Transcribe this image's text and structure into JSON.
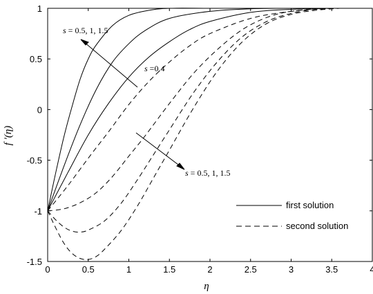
{
  "chart_data": {
    "type": "line",
    "xlabel": "η",
    "ylabel": "f '(η)",
    "xlim": [
      0,
      4
    ],
    "ylim": [
      -1.5,
      1
    ],
    "xticks": [
      "0",
      "0.5",
      "1",
      "1.5",
      "2",
      "2.5",
      "3",
      "3.5",
      "4"
    ],
    "yticks": [
      "1",
      "0.5",
      "0",
      "-0.5",
      "-1",
      "-1.5"
    ],
    "grid": false,
    "legend_position": "bottom-right",
    "legend": [
      {
        "label": "first solution",
        "style": "solid"
      },
      {
        "label": "second solution",
        "style": "dashed"
      }
    ],
    "annotations": {
      "first_arrow_label": "s = 0.5, 1, 1.5",
      "middle_label": "s =0.4",
      "second_arrow_label": "s = 0.5, 1, 1.5"
    },
    "series": [
      {
        "style": "solid",
        "x": [
          0,
          0.1,
          0.2,
          0.3,
          0.4,
          0.5,
          0.6,
          0.8,
          1.0,
          1.25,
          1.5,
          2.0,
          2.5
        ],
        "y": [
          -1,
          -0.62,
          -0.27,
          0.03,
          0.3,
          0.5,
          0.64,
          0.83,
          0.93,
          0.98,
          1.0,
          1.0,
          1.0
        ]
      },
      {
        "style": "solid",
        "x": [
          0,
          0.2,
          0.4,
          0.6,
          0.8,
          1.0,
          1.2,
          1.5,
          2.0,
          2.5,
          3.0
        ],
        "y": [
          -1,
          -0.56,
          -0.15,
          0.2,
          0.47,
          0.65,
          0.78,
          0.9,
          0.97,
          0.995,
          1.0
        ]
      },
      {
        "style": "solid",
        "x": [
          0,
          0.25,
          0.5,
          0.75,
          1.0,
          1.25,
          1.5,
          1.75,
          2.0,
          2.5,
          3.0,
          3.5
        ],
        "y": [
          -1,
          -0.62,
          -0.25,
          0.06,
          0.32,
          0.52,
          0.67,
          0.79,
          0.87,
          0.96,
          0.99,
          1.0
        ]
      },
      {
        "style": "dashed",
        "x": [
          0,
          0.25,
          0.5,
          0.75,
          1.0,
          1.25,
          1.5,
          1.75,
          2.0,
          2.5,
          3.0,
          3.5
        ],
        "y": [
          -1,
          -0.75,
          -0.48,
          -0.22,
          0.05,
          0.28,
          0.47,
          0.63,
          0.75,
          0.9,
          0.97,
          1.0
        ]
      },
      {
        "style": "dashed",
        "x": [
          0,
          0.2,
          0.4,
          0.6,
          0.8,
          1.0,
          1.2,
          1.5,
          1.8,
          2.1,
          2.4,
          2.7,
          3.0,
          3.4
        ],
        "y": [
          -1,
          -0.98,
          -0.92,
          -0.82,
          -0.66,
          -0.46,
          -0.26,
          0.06,
          0.36,
          0.6,
          0.79,
          0.91,
          0.97,
          1.0
        ]
      },
      {
        "style": "dashed",
        "x": [
          0,
          0.1,
          0.2,
          0.3,
          0.4,
          0.5,
          0.7,
          0.9,
          1.1,
          1.3,
          1.5,
          1.8,
          2.1,
          2.4,
          2.7,
          3.0,
          3.3,
          3.6
        ],
        "y": [
          -1,
          -1.09,
          -1.16,
          -1.2,
          -1.21,
          -1.19,
          -1.1,
          -0.93,
          -0.7,
          -0.45,
          -0.2,
          0.17,
          0.48,
          0.72,
          0.87,
          0.95,
          0.99,
          1.0
        ]
      },
      {
        "style": "dashed",
        "x": [
          0,
          0.1,
          0.2,
          0.3,
          0.4,
          0.5,
          0.6,
          0.7,
          0.9,
          1.1,
          1.3,
          1.5,
          1.8,
          2.1,
          2.4,
          2.7,
          3.0,
          3.3,
          3.6
        ],
        "y": [
          -1,
          -1.17,
          -1.32,
          -1.42,
          -1.47,
          -1.48,
          -1.45,
          -1.38,
          -1.2,
          -0.96,
          -0.68,
          -0.4,
          0.02,
          0.39,
          0.67,
          0.85,
          0.94,
          0.98,
          1.0
        ]
      }
    ]
  }
}
